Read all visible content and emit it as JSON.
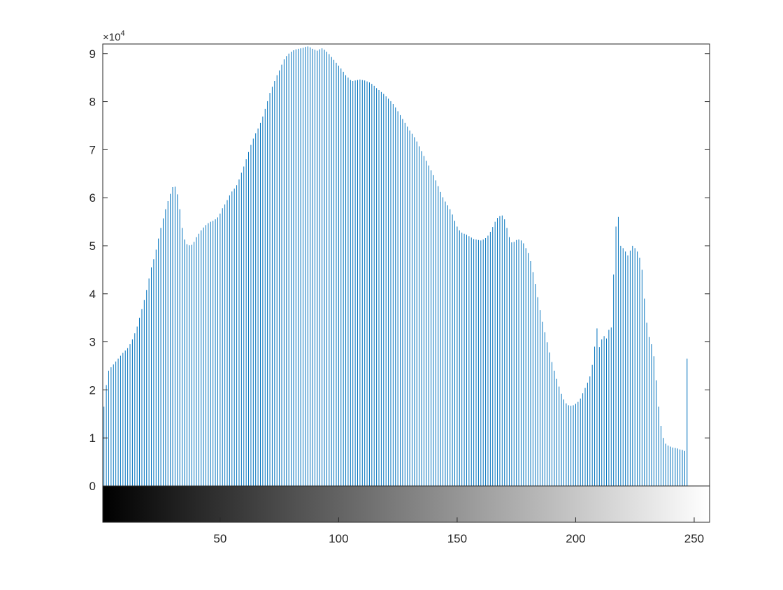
{
  "chart_data": {
    "type": "bar",
    "title": "",
    "xlabel": "",
    "ylabel": "",
    "xlim": [
      1,
      256
    ],
    "ylim": [
      0,
      92000
    ],
    "y_exponent_label": "×10",
    "y_exponent_power": "4",
    "x_ticks": [
      50,
      100,
      150,
      200,
      250
    ],
    "x_tick_labels": [
      "50",
      "100",
      "150",
      "200",
      "250"
    ],
    "y_ticks": [
      0,
      10000,
      20000,
      30000,
      40000,
      50000,
      60000,
      70000,
      80000,
      90000
    ],
    "y_tick_labels": [
      "0",
      "1",
      "2",
      "3",
      "4",
      "5",
      "6",
      "7",
      "8",
      "9"
    ],
    "grid": false,
    "colorbar": "grayscale 0-255 below x axis",
    "bar_color": "#0072BD",
    "series": [
      {
        "x_start": 1,
        "x_step": 1,
        "values": [
          16500,
          21000,
          24000,
          24700,
          25300,
          25900,
          26500,
          27100,
          27700,
          28200,
          28700,
          29500,
          30500,
          31800,
          33200,
          35000,
          36800,
          38700,
          40800,
          43200,
          45500,
          47200,
          49200,
          51500,
          53700,
          55700,
          57600,
          59300,
          60800,
          62200,
          62300,
          60700,
          57600,
          53700,
          51300,
          50300,
          50100,
          50200,
          50800,
          51800,
          52500,
          53200,
          53800,
          54300,
          54700,
          55000,
          55200,
          55500,
          55900,
          56700,
          57800,
          58600,
          59500,
          60500,
          61300,
          61900,
          62600,
          63800,
          65200,
          66500,
          68000,
          69500,
          71000,
          72300,
          73400,
          74400,
          75600,
          76900,
          78500,
          80100,
          81800,
          83100,
          84300,
          85500,
          86500,
          87700,
          88800,
          89500,
          90000,
          90400,
          90700,
          90900,
          91000,
          91100,
          91200,
          91400,
          91500,
          91300,
          91000,
          90800,
          90600,
          90900,
          91100,
          90800,
          90400,
          89900,
          89300,
          88700,
          88100,
          87500,
          86900,
          86200,
          85500,
          85000,
          84500,
          84300,
          84400,
          84500,
          84600,
          84500,
          84400,
          84200,
          84000,
          83700,
          83300,
          82800,
          82400,
          82000,
          81600,
          81100,
          80600,
          80100,
          79500,
          78800,
          78000,
          77200,
          76400,
          75600,
          74800,
          74000,
          73300,
          72600,
          71700,
          70700,
          69700,
          68700,
          67700,
          66700,
          65700,
          64700,
          63600,
          62400,
          61200,
          60100,
          59200,
          58400,
          57600,
          56500,
          55200,
          54000,
          53200,
          52700,
          52500,
          52300,
          52000,
          51700,
          51400,
          51300,
          51200,
          51100,
          51300,
          51600,
          52100,
          52900,
          53900,
          55000,
          55800,
          56200,
          56300,
          55500,
          53700,
          51800,
          50700,
          50800,
          51200,
          51300,
          51100,
          50500,
          49500,
          48500,
          46800,
          44500,
          42000,
          39300,
          36600,
          34200,
          32000,
          29900,
          27800,
          25800,
          24000,
          22300,
          20700,
          19200,
          18000,
          17200,
          16800,
          16700,
          16800,
          17100,
          17500,
          18200,
          19300,
          20400,
          21500,
          22800,
          25200,
          29000,
          32800,
          28900,
          30500,
          31200,
          30700,
          32500,
          33000,
          44000,
          54000,
          56000,
          50000,
          49500,
          48800,
          48000,
          49000,
          50000,
          49500,
          48800,
          47500,
          45000,
          39000,
          34000,
          31000,
          29500,
          27000,
          22000,
          16500,
          12500,
          10000,
          8800,
          8400,
          8200,
          8000,
          7900,
          7800,
          7600,
          7500,
          7300,
          26500
        ]
      }
    ]
  }
}
